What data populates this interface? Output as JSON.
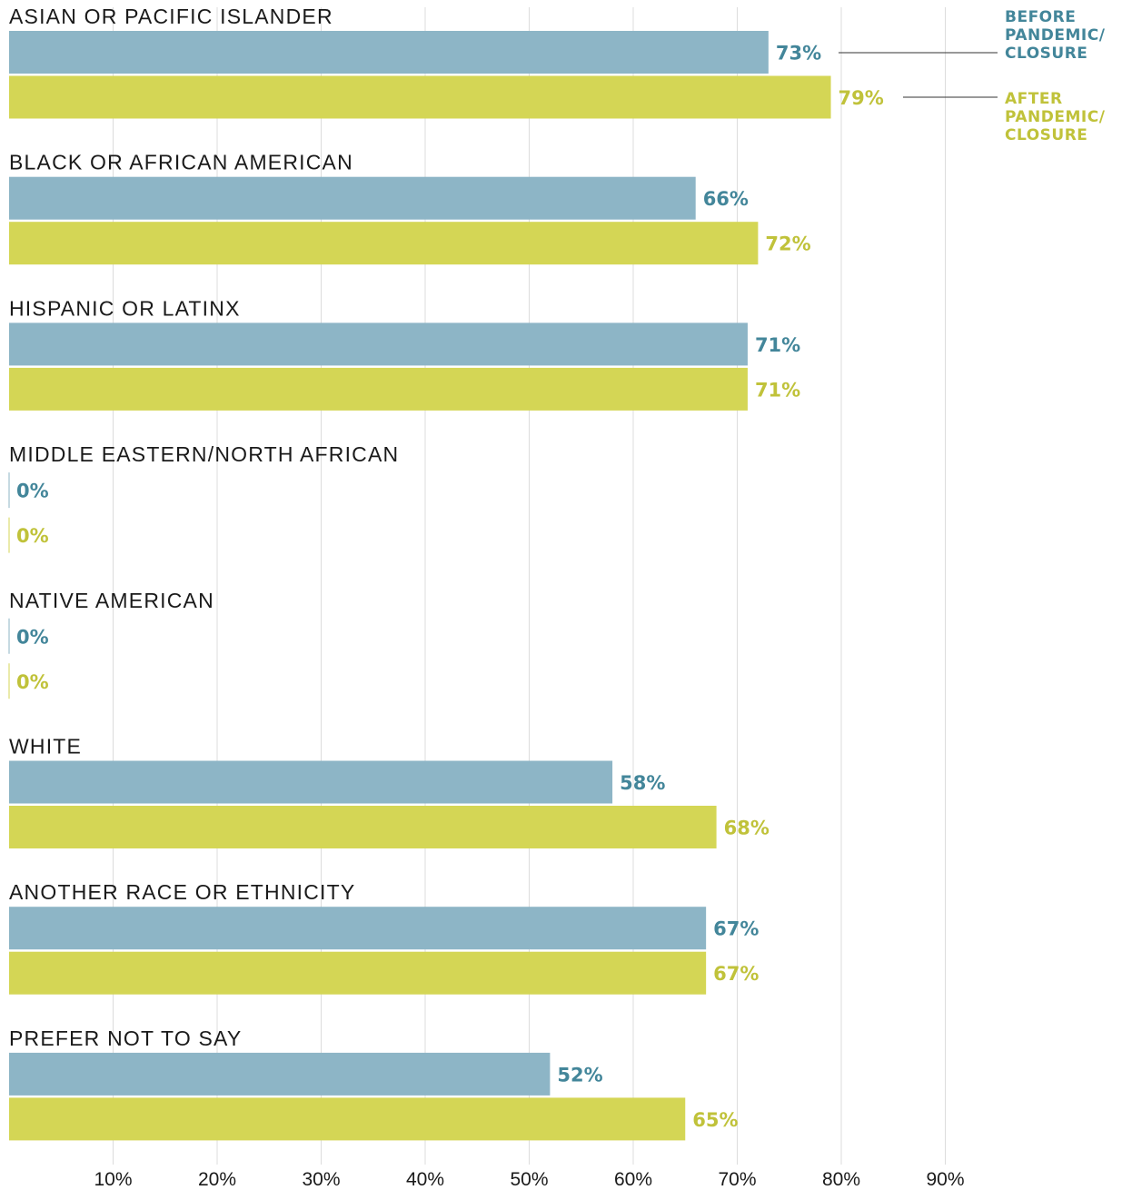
{
  "chart_data": {
    "type": "bar",
    "orientation": "horizontal",
    "categories": [
      "ASIAN OR PACIFIC ISLANDER",
      "BLACK OR AFRICAN AMERICAN",
      "HISPANIC OR LATINX",
      "MIDDLE EASTERN/NORTH AFRICAN",
      "NATIVE AMERICAN",
      "WHITE",
      "ANOTHER RACE OR ETHNICITY",
      "PREFER NOT TO SAY"
    ],
    "series": [
      {
        "name": "BEFORE PANDEMIC/ CLOSURE",
        "legend_lines": [
          "BEFORE",
          "PANDEMIC/",
          "CLOSURE"
        ],
        "values": [
          73,
          66,
          71,
          0,
          0,
          58,
          67,
          52
        ],
        "labels": [
          "73%",
          "66%",
          "71%",
          "0%",
          "0%",
          "58%",
          "67%",
          "52%"
        ]
      },
      {
        "name": "AFTER PANDEMIC/ CLOSURE",
        "legend_lines": [
          "AFTER",
          "PANDEMIC/",
          "CLOSURE"
        ],
        "values": [
          79,
          72,
          71,
          0,
          0,
          68,
          67,
          65
        ],
        "labels": [
          "79%",
          "72%",
          "71%",
          "0%",
          "0%",
          "68%",
          "67%",
          "65%"
        ]
      }
    ],
    "x_ticks": [
      10,
      20,
      30,
      40,
      50,
      60,
      70,
      80,
      90
    ],
    "x_tick_labels": [
      "10%",
      "20%",
      "30%",
      "40%",
      "50%",
      "60%",
      "70%",
      "80%",
      "90%"
    ],
    "xlim": [
      0,
      100
    ],
    "title": "",
    "xlabel": "",
    "ylabel": "",
    "grid": true,
    "legend_position": "top-right",
    "colors": {
      "before_bar": "#8db5c6",
      "before_text": "#43869a",
      "after_bar": "#d4d655",
      "after_text": "#c0c23a",
      "grid": "#dcdcdc",
      "leader": "#333333"
    }
  }
}
